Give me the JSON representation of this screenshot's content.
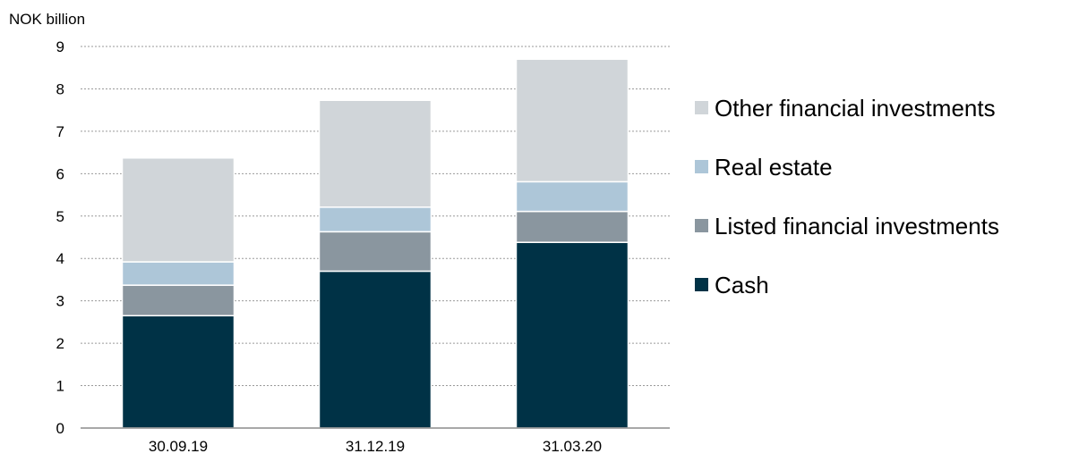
{
  "chart_data": {
    "type": "bar",
    "stacked": true,
    "unit_label": "NOK billion",
    "title": "",
    "xlabel": "",
    "ylabel": "",
    "categories": [
      "30.09.19",
      "31.12.19",
      "31.03.20"
    ],
    "ylim": [
      0,
      9
    ],
    "yticks": [
      0,
      1,
      2,
      3,
      4,
      5,
      6,
      7,
      8,
      9
    ],
    "grid": "horizontal-dotted",
    "legend_position": "right",
    "series": [
      {
        "name": "Cash",
        "color": "#003246",
        "values": [
          2.65,
          3.7,
          4.38
        ]
      },
      {
        "name": "Listed financial investments",
        "color": "#8a969f",
        "values": [
          0.72,
          0.93,
          0.73
        ]
      },
      {
        "name": "Real estate",
        "color": "#adc6d8",
        "values": [
          0.55,
          0.58,
          0.7
        ]
      },
      {
        "name": "Other financial investments",
        "color": "#d0d5d9",
        "values": [
          2.45,
          2.52,
          2.89
        ]
      }
    ]
  }
}
